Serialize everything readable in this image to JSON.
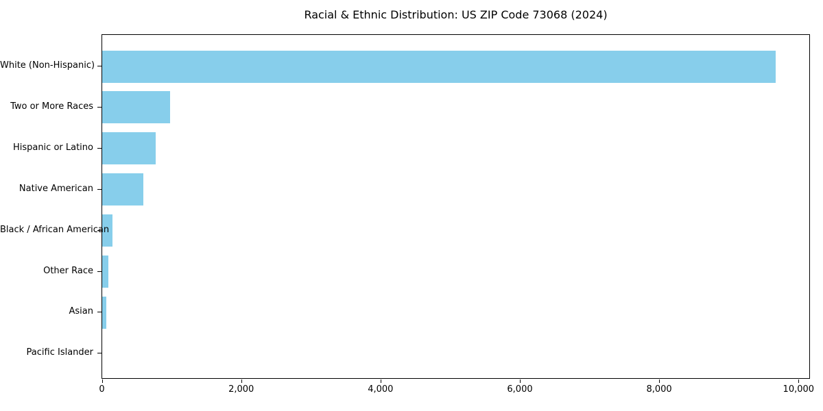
{
  "chart_data": {
    "type": "bar",
    "orientation": "horizontal",
    "title": "Racial & Ethnic Distribution: US ZIP Code 73068 (2024)",
    "categories": [
      "White (Non-Hispanic)",
      "Two or More Races",
      "Hispanic or Latino",
      "Native American",
      "Black / African American",
      "Other Race",
      "Asian",
      "Pacific Islander"
    ],
    "values": [
      9665,
      970,
      765,
      595,
      145,
      90,
      60,
      0
    ],
    "xlabel": "",
    "ylabel": "",
    "xlim": [
      0,
      10150
    ],
    "x_ticks": [
      0,
      2000,
      4000,
      6000,
      8000,
      10000
    ],
    "x_tick_labels": [
      "0",
      "2,000",
      "4,000",
      "6,000",
      "8,000",
      "10,000"
    ],
    "bar_color": "#87CEEB",
    "background_color": "#ffffff",
    "spine_color": "#000000",
    "grid": false,
    "legend": null
  }
}
